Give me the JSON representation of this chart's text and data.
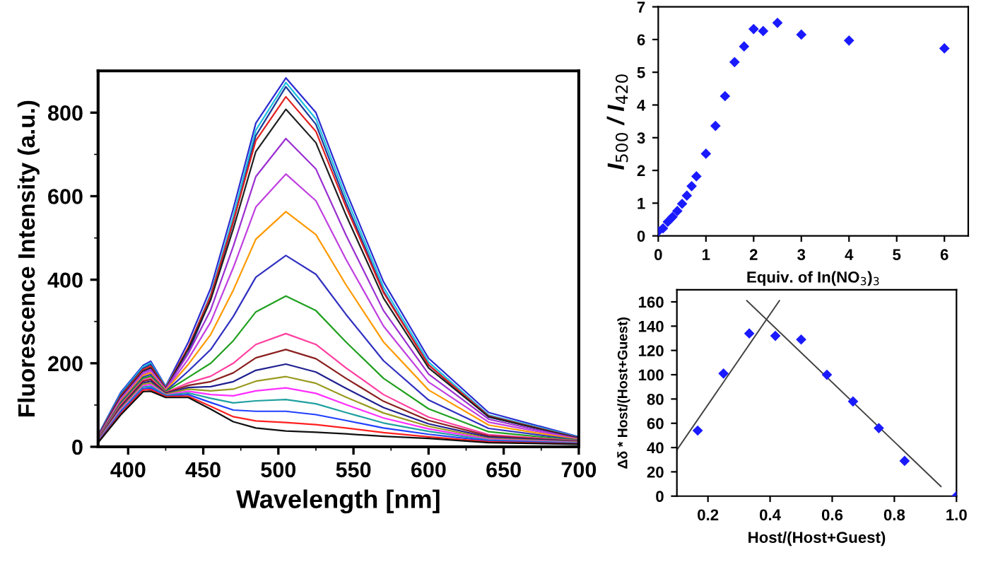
{
  "chart_data": [
    {
      "type": "line",
      "xlabel": "Wavelength [nm]",
      "ylabel": "Fluorescence Intensity (a.u.)",
      "xlim": [
        380,
        700
      ],
      "ylim": [
        0,
        900
      ],
      "xticks": [
        400,
        {
          "value": 425,
          "label": null
        },
        450,
        {
          "value": 475,
          "label": null
        },
        500,
        {
          "value": 525,
          "label": null
        },
        550,
        {
          "value": 575,
          "label": null
        },
        600,
        {
          "value": 625,
          "label": null
        },
        650,
        {
          "value": 675,
          "label": null
        },
        700
      ],
      "yticks": [
        0,
        {
          "value": 100,
          "label": null
        },
        200,
        {
          "value": 300,
          "label": null
        },
        400,
        {
          "value": 500,
          "label": null
        },
        600,
        {
          "value": 700,
          "label": null
        },
        800
      ],
      "marker": "none",
      "x": [
        380,
        395,
        410,
        415,
        425,
        440,
        455,
        470,
        485,
        505,
        525,
        545,
        570,
        600,
        640,
        700
      ],
      "series": [
        {
          "color": "#2b2bd0",
          "values": [
            28,
            130,
            195,
            205,
            145,
            250,
            380,
            570,
            775,
            883,
            800,
            612,
            395,
            212,
            82,
            24
          ]
        },
        {
          "color": "#20c0e0",
          "values": [
            27,
            127,
            192,
            201,
            144,
            236,
            366,
            552,
            758,
            872,
            785,
            598,
            382,
            203,
            76,
            23
          ]
        },
        {
          "color": "#1a3a9a",
          "values": [
            26,
            124,
            188,
            197,
            142,
            225,
            355,
            538,
            745,
            862,
            772,
            585,
            372,
            196,
            71,
            22
          ]
        },
        {
          "color": "#e02020",
          "values": [
            25,
            121,
            185,
            193,
            141,
            238,
            362,
            540,
            733,
            838,
            755,
            575,
            369,
            196,
            74,
            21
          ]
        },
        {
          "color": "#202020",
          "values": [
            24,
            118,
            181,
            189,
            139,
            234,
            352,
            522,
            707,
            808,
            728,
            555,
            356,
            189,
            72,
            20
          ]
        },
        {
          "color": "#9b30d0",
          "values": [
            23,
            115,
            178,
            185,
            138,
            223,
            328,
            480,
            647,
            738,
            665,
            507,
            326,
            174,
            66,
            19
          ]
        },
        {
          "color": "#c040e0",
          "values": [
            22,
            112,
            174,
            181,
            136,
            210,
            299,
            429,
            574,
            653,
            589,
            449,
            289,
            155,
            59,
            18
          ]
        },
        {
          "color": "#ff9900",
          "values": [
            21,
            109,
            171,
            177,
            135,
            197,
            269,
            375,
            497,
            563,
            508,
            388,
            251,
            136,
            52,
            17
          ]
        },
        {
          "color": "#3030c0",
          "values": [
            20,
            106,
            167,
            173,
            133,
            181,
            233,
            312,
            406,
            458,
            413,
            317,
            206,
            112,
            44,
            16
          ]
        },
        {
          "color": "#20a020",
          "values": [
            19,
            103,
            164,
            169,
            132,
            166,
            200,
            254,
            323,
            361,
            326,
            251,
            164,
            91,
            36,
            15
          ]
        },
        {
          "color": "#ff40a0",
          "values": [
            18,
            100,
            160,
            165,
            130,
            153,
            169,
            200,
            245,
            271,
            245,
            189,
            125,
            71,
            29,
            14
          ]
        },
        {
          "color": "#8b2020",
          "values": [
            17,
            97,
            157,
            161,
            129,
            147,
            156,
            177,
            213,
            233,
            211,
            164,
            109,
            63,
            26,
            13
          ]
        },
        {
          "color": "#202090",
          "values": [
            16,
            94,
            153,
            157,
            127,
            142,
            144,
            156,
            183,
            198,
            179,
            140,
            94,
            55,
            23,
            12
          ]
        },
        {
          "color": "#9a9a20",
          "values": [
            15,
            91,
            150,
            153,
            126,
            138,
            134,
            138,
            157,
            168,
            152,
            119,
            81,
            49,
            20,
            11
          ]
        },
        {
          "color": "#ff30ff",
          "values": [
            14,
            88,
            146,
            149,
            124,
            133,
            125,
            122,
            134,
            141,
            128,
            101,
            69,
            43,
            18,
            10
          ]
        },
        {
          "color": "#20a0a0",
          "values": [
            13,
            85,
            143,
            145,
            123,
            129,
            116,
            105,
            110,
            113,
            103,
            82,
            57,
            37,
            16,
            9
          ]
        },
        {
          "color": "#2040ff",
          "values": [
            12,
            82,
            139,
            141,
            121,
            125,
            106,
            88,
            85,
            85,
            77,
            63,
            45,
            30,
            14,
            8
          ]
        },
        {
          "color": "#ff2020",
          "values": [
            11,
            79,
            136,
            137,
            120,
            121,
            97,
            72,
            62,
            58,
            53,
            45,
            34,
            24,
            12,
            7
          ]
        },
        {
          "color": "#101010",
          "values": [
            10,
            76,
            132,
            133,
            118,
            118,
            90,
            60,
            45,
            38,
            35,
            31,
            25,
            20,
            10,
            6
          ]
        }
      ]
    },
    {
      "type": "scatter",
      "xlabel": "Equiv. of In(NO$_{3}$)$_{3}$",
      "ylabel": "I$_{500}$ / I$_{420}$",
      "xlim": [
        0,
        6.5
      ],
      "ylim": [
        0,
        7
      ],
      "xticks": [
        0,
        1,
        2,
        3,
        4,
        5,
        6
      ],
      "yticks": [
        0,
        1,
        2,
        3,
        4,
        5,
        6,
        7
      ],
      "marker": "diamond",
      "x": [
        0,
        0.1,
        0.2,
        0.3,
        0.4,
        0.5,
        0.6,
        0.7,
        0.8,
        1,
        1.2,
        1.4,
        1.6,
        1.8,
        2,
        2.2,
        2.5,
        3,
        4,
        6
      ],
      "series": [
        {
          "color": "#1a1aff",
          "values": [
            0.14,
            0.23,
            0.43,
            0.58,
            0.76,
            0.98,
            1.23,
            1.52,
            1.82,
            2.51,
            3.36,
            4.27,
            5.31,
            5.79,
            6.32,
            6.26,
            6.51,
            6.15,
            5.97,
            5.73
          ]
        }
      ]
    },
    {
      "type": "scatter",
      "xlabel": "Host/(Host+Guest)",
      "ylabel": "Δδ * Host/(Host+Guest)",
      "xlim": [
        0.1,
        1.0
      ],
      "ylim": [
        0,
        170
      ],
      "xticks": [
        {
          "value": 0.2,
          "label": "0.2"
        },
        {
          "value": 0.4,
          "label": "0.4"
        },
        {
          "value": 0.6,
          "label": "0.6"
        },
        {
          "value": 0.8,
          "label": "0.8"
        },
        {
          "value": 1.0,
          "label": "1.0"
        }
      ],
      "yticks": [
        0,
        20,
        40,
        60,
        80,
        100,
        120,
        140,
        160
      ],
      "marker": "diamond",
      "x": [
        0.167,
        0.25,
        0.333,
        0.417,
        0.5,
        0.583,
        0.667,
        0.75,
        0.833,
        1.0
      ],
      "series": [
        {
          "color": "#1a1aff",
          "values": [
            54,
            101,
            134,
            132,
            129,
            100,
            78,
            56,
            29,
            0
          ]
        },
        {
          "type": "line",
          "marker": "none",
          "color": "#404040",
          "x": [
            0.1,
            0.43
          ],
          "values": [
            38,
            161
          ]
        },
        {
          "type": "line",
          "marker": "none",
          "color": "#404040",
          "x": [
            0.325,
            0.95
          ],
          "values": [
            161,
            8
          ]
        }
      ]
    }
  ]
}
